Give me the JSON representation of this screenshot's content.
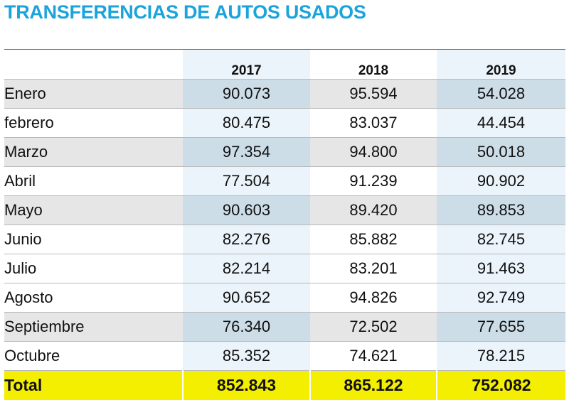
{
  "title": "TRANSFERENCIAS DE AUTOS USADOS",
  "colors": {
    "title": "#1ba4dc",
    "total_highlight": "#f4ee00",
    "col_tint": "#eaf4fa",
    "row_shade": "#e6e6e6",
    "col_shade": "#ccdde8"
  },
  "chart_data": {
    "type": "table",
    "columns": [
      "",
      "2017",
      "2018",
      "2019"
    ],
    "rows": [
      {
        "month": "Enero",
        "values": [
          "90.073",
          "95.594",
          "54.028"
        ]
      },
      {
        "month": "febrero",
        "values": [
          "80.475",
          "83.037",
          "44.454"
        ]
      },
      {
        "month": "Marzo",
        "values": [
          "97.354",
          "94.800",
          "50.018"
        ]
      },
      {
        "month": "Abril",
        "values": [
          "77.504",
          "91.239",
          "90.902"
        ]
      },
      {
        "month": "Mayo",
        "values": [
          "90.603",
          "89.420",
          "89.853"
        ]
      },
      {
        "month": "Junio",
        "values": [
          "82.276",
          "85.882",
          "82.745"
        ]
      },
      {
        "month": "Julio",
        "values": [
          "82.214",
          "83.201",
          "91.463"
        ]
      },
      {
        "month": "Agosto",
        "values": [
          "90.652",
          "94.826",
          "92.749"
        ]
      },
      {
        "month": "Septiembre",
        "values": [
          "76.340",
          "72.502",
          "77.655"
        ]
      },
      {
        "month": "Octubre",
        "values": [
          "85.352",
          "74.621",
          "78.215"
        ]
      }
    ],
    "total": {
      "label": "Total",
      "values": [
        "852.843",
        "865.122",
        "752.082"
      ]
    }
  }
}
